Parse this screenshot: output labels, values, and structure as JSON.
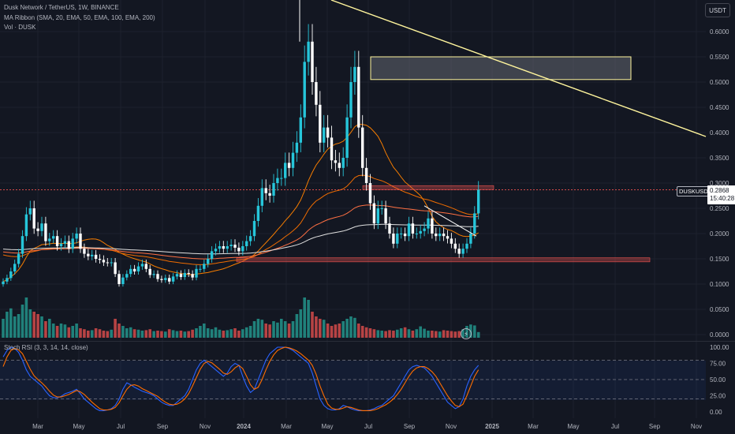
{
  "header": {
    "title": "Dusk Network / TetherUS, 1W, BINANCE",
    "indicator1": "MA Ribbon (SMA, 20, EMA, 50, EMA, 100, EMA, 200)",
    "indicator2": "Vol · DUSK",
    "currency_button": "USDT"
  },
  "price_panel": {
    "ticker_label": "DUSKUSDT",
    "last_price": "0.2868",
    "countdown": "15:40:28",
    "y_ticks": [
      "0.6000",
      "0.5500",
      "0.5000",
      "0.4500",
      "0.4000",
      "0.3500",
      "0.3000",
      "0.2500",
      "0.2000",
      "0.1500",
      "0.1000",
      "0.0500",
      "0.0000"
    ]
  },
  "rsi_panel": {
    "title": "Stoch RSI (3, 3, 14, 14, close)",
    "y_ticks": [
      "100.00",
      "75.00",
      "50.00",
      "25.00",
      "0.00"
    ]
  },
  "x_axis": [
    "Mar",
    "May",
    "Jul",
    "Sep",
    "Nov",
    "2024",
    "Mar",
    "May",
    "Jul",
    "Sep",
    "Nov",
    "2025",
    "Mar",
    "May",
    "Jul",
    "Sep",
    "Nov"
  ],
  "colors": {
    "background": "#131722",
    "up": "#26c6da",
    "down": "#ffffff",
    "ma_sma20": "#f57c00",
    "ma_ema50": "#ef6c00",
    "ma_ema100": "#ff7043",
    "ma_ema200": "#e0e0e0",
    "volume_up": "#26a69a",
    "volume_down": "#ef5350",
    "stoch_k": "#2962ff",
    "stoch_d": "#ff6d00",
    "trendline": "#fff59d"
  },
  "chart_data": [
    {
      "type": "candlestick",
      "title": "Dusk Network / TetherUS, 1W, BINANCE",
      "timeframe": "1W",
      "ylim": [
        0.0,
        0.6
      ],
      "ohlc_close": [
        0.105,
        0.112,
        0.125,
        0.14,
        0.16,
        0.195,
        0.238,
        0.25,
        0.21,
        0.205,
        0.22,
        0.185,
        0.19,
        0.195,
        0.175,
        0.18,
        0.185,
        0.17,
        0.19,
        0.2,
        0.17,
        0.16,
        0.155,
        0.158,
        0.15,
        0.148,
        0.143,
        0.142,
        0.143,
        0.12,
        0.1,
        0.113,
        0.12,
        0.13,
        0.125,
        0.135,
        0.14,
        0.13,
        0.118,
        0.12,
        0.11,
        0.108,
        0.112,
        0.105,
        0.115,
        0.12,
        0.114,
        0.122,
        0.12,
        0.113,
        0.13,
        0.13,
        0.14,
        0.15,
        0.165,
        0.17,
        0.175,
        0.17,
        0.175,
        0.178,
        0.172,
        0.165,
        0.175,
        0.185,
        0.195,
        0.225,
        0.255,
        0.29,
        0.28,
        0.275,
        0.3,
        0.31,
        0.31,
        0.34,
        0.33,
        0.36,
        0.38,
        0.43,
        0.54,
        0.58,
        0.5,
        0.455,
        0.38,
        0.41,
        0.39,
        0.345,
        0.34,
        0.33,
        0.35,
        0.43,
        0.5,
        0.53,
        0.41,
        0.33,
        0.3,
        0.26,
        0.22,
        0.25,
        0.25,
        0.22,
        0.2,
        0.18,
        0.2,
        0.2,
        0.195,
        0.22,
        0.2,
        0.2,
        0.205,
        0.21,
        0.23,
        0.2,
        0.195,
        0.2,
        0.195,
        0.19,
        0.18,
        0.17,
        0.16,
        0.17,
        0.18,
        0.2,
        0.24,
        0.2868
      ],
      "last_price": 0.2868,
      "ma_ribbon": [
        "SMA 20",
        "EMA 50",
        "EMA 100",
        "EMA 200"
      ],
      "annotations": [
        "supply zone rectangle ~0.505-0.550",
        "descending trendline",
        "support zone ~0.148",
        "resistance zone ~0.29"
      ]
    },
    {
      "type": "bar",
      "title": "Vol · DUSK",
      "values_relative": [
        0.4,
        0.55,
        0.62,
        0.45,
        0.5,
        0.7,
        0.85,
        0.6,
        0.55,
        0.5,
        0.45,
        0.35,
        0.4,
        0.3,
        0.25,
        0.3,
        0.28,
        0.22,
        0.25,
        0.3,
        0.2,
        0.18,
        0.15,
        0.16,
        0.2,
        0.18,
        0.15,
        0.14,
        0.17,
        0.4,
        0.3,
        0.25,
        0.2,
        0.22,
        0.18,
        0.17,
        0.15,
        0.16,
        0.18,
        0.14,
        0.15,
        0.14,
        0.13,
        0.18,
        0.16,
        0.14,
        0.15,
        0.13,
        0.14,
        0.17,
        0.2,
        0.25,
        0.3,
        0.2,
        0.18,
        0.22,
        0.17,
        0.15,
        0.16,
        0.18,
        0.2,
        0.15,
        0.18,
        0.22,
        0.25,
        0.35,
        0.4,
        0.38,
        0.3,
        0.28,
        0.35,
        0.32,
        0.4,
        0.35,
        0.3,
        0.35,
        0.5,
        0.6,
        0.85,
        0.8,
        0.55,
        0.45,
        0.4,
        0.38,
        0.3,
        0.25,
        0.28,
        0.3,
        0.35,
        0.4,
        0.45,
        0.42,
        0.3,
        0.25,
        0.22,
        0.2,
        0.18,
        0.16,
        0.15,
        0.14,
        0.16,
        0.15,
        0.17,
        0.2,
        0.22,
        0.18,
        0.15,
        0.18,
        0.24,
        0.19,
        0.15,
        0.15,
        0.14,
        0.13,
        0.16,
        0.15,
        0.14,
        0.13,
        0.14,
        0.18,
        0.25,
        0.28,
        0.26,
        0.12
      ]
    },
    {
      "type": "line",
      "title": "Stoch RSI (3, 3, 14, 14, close)",
      "ylim": [
        0,
        100
      ],
      "levels": [
        80,
        50,
        20
      ],
      "series": [
        {
          "name": "K",
          "values": [
            85,
            95,
            100,
            98,
            92,
            80,
            65,
            55,
            50,
            45,
            40,
            32,
            25,
            22,
            22,
            24,
            28,
            30,
            32,
            35,
            28,
            20,
            15,
            10,
            5,
            2,
            2,
            3,
            5,
            10,
            20,
            35,
            45,
            42,
            38,
            35,
            32,
            30,
            28,
            25,
            20,
            15,
            12,
            10,
            10,
            15,
            20,
            25,
            35,
            50,
            65,
            75,
            80,
            75,
            70,
            65,
            60,
            55,
            60,
            70,
            75,
            72,
            55,
            40,
            30,
            35,
            50,
            65,
            80,
            90,
            95,
            100,
            100,
            100,
            98,
            95,
            90,
            85,
            80,
            75,
            60,
            40,
            20,
            10,
            5,
            3,
            3,
            5,
            10,
            8,
            5,
            3,
            2,
            2,
            2,
            3,
            5,
            8,
            10,
            15,
            20,
            25,
            35,
            45,
            55,
            65,
            70,
            72,
            70,
            68,
            62,
            55,
            45,
            35,
            25,
            15,
            10,
            5,
            8,
            20,
            40,
            55,
            65,
            72
          ]
        },
        {
          "name": "D",
          "values": [
            70,
            85,
            95,
            98,
            96,
            90,
            78,
            66,
            56,
            50,
            45,
            39,
            32,
            26,
            23,
            23,
            25,
            27,
            30,
            33,
            31,
            27,
            21,
            15,
            10,
            5,
            3,
            3,
            4,
            7,
            14,
            25,
            35,
            41,
            42,
            40,
            36,
            33,
            30,
            27,
            24,
            19,
            15,
            12,
            11,
            12,
            15,
            20,
            28,
            40,
            53,
            66,
            75,
            78,
            76,
            71,
            66,
            60,
            58,
            62,
            68,
            72,
            67,
            55,
            42,
            35,
            38,
            50,
            65,
            78,
            88,
            95,
            98,
            100,
            99,
            97,
            94,
            90,
            85,
            80,
            72,
            58,
            40,
            25,
            12,
            6,
            4,
            4,
            6,
            8,
            7,
            5,
            3,
            2,
            2,
            2,
            3,
            5,
            8,
            11,
            15,
            20,
            27,
            35,
            45,
            55,
            63,
            68,
            70,
            70,
            67,
            62,
            55,
            45,
            35,
            25,
            17,
            10,
            8,
            12,
            25,
            40,
            55,
            65
          ]
        }
      ]
    }
  ]
}
